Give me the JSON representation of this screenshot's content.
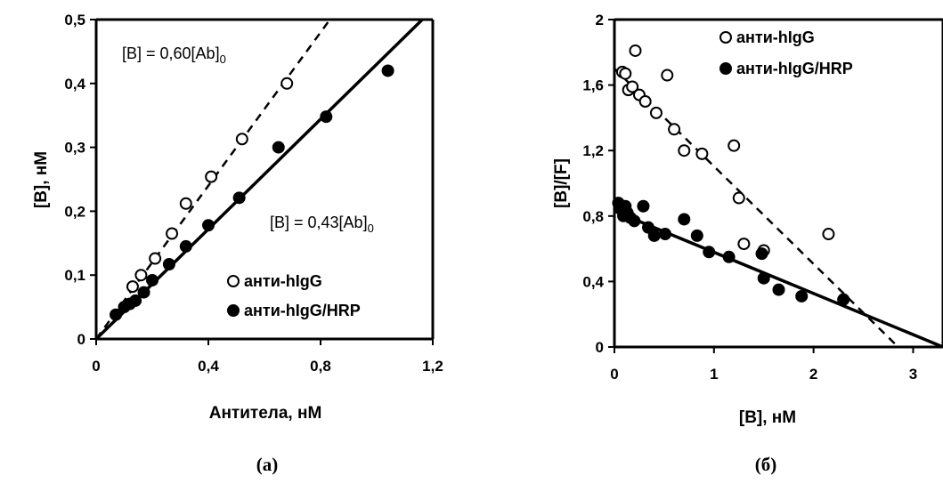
{
  "chart_data": [
    {
      "type": "scatter",
      "panel_label": "(a)",
      "xlabel": "Антитела, нМ",
      "ylabel": "[B], нМ",
      "xlim": [
        0,
        1.2
      ],
      "ylim": [
        0,
        0.5
      ],
      "xticks": [
        "0",
        "0,4",
        "0,8",
        "1,2"
      ],
      "yticks": [
        "0",
        "0,1",
        "0,2",
        "0,3",
        "0,4",
        "0,5"
      ],
      "grid": false,
      "legend_position": "bottom-right",
      "series": [
        {
          "name": "анти-hIgG",
          "marker": "open-circle",
          "x": [
            0.13,
            0.16,
            0.21,
            0.27,
            0.32,
            0.41,
            0.52,
            0.68
          ],
          "y": [
            0.082,
            0.1,
            0.126,
            0.165,
            0.212,
            0.254,
            0.313,
            0.4
          ]
        },
        {
          "name": "анти-hIgG/HRP",
          "marker": "filled-circle",
          "x": [
            0.07,
            0.1,
            0.12,
            0.14,
            0.17,
            0.2,
            0.26,
            0.32,
            0.4,
            0.51,
            0.65,
            0.82,
            1.04
          ],
          "y": [
            0.038,
            0.05,
            0.055,
            0.06,
            0.073,
            0.092,
            0.117,
            0.145,
            0.178,
            0.221,
            0.3,
            0.348,
            0.42
          ]
        }
      ],
      "fits": [
        {
          "label_main": "[B] = 0,60[Ab]",
          "label_sub": "0",
          "slope": 0.6,
          "style": "dashed",
          "x_range": [
            0,
            0.85
          ]
        },
        {
          "label_main": "[B] = 0,43[Ab]",
          "label_sub": "0",
          "slope": 0.43,
          "style": "solid",
          "x_range": [
            0,
            1.2
          ]
        }
      ]
    },
    {
      "type": "scatter",
      "panel_label": "(б)",
      "xlabel": "[B], нМ",
      "ylabel": "[B]/[F]",
      "xlim": [
        0,
        3.3
      ],
      "ylim": [
        0,
        2
      ],
      "xticks": [
        "0",
        "1",
        "2",
        "3"
      ],
      "yticks": [
        "0",
        "0,4",
        "0,8",
        "1,2",
        "1,6",
        "2"
      ],
      "grid": false,
      "legend_position": "top-right",
      "series": [
        {
          "name": "анти-hIgG",
          "marker": "open-circle",
          "x": [
            0.08,
            0.11,
            0.14,
            0.18,
            0.21,
            0.25,
            0.31,
            0.42,
            0.53,
            0.6,
            0.7,
            0.88,
            1.2,
            1.25,
            1.3,
            1.5,
            2.15
          ],
          "y": [
            1.68,
            1.67,
            1.57,
            1.59,
            1.81,
            1.54,
            1.5,
            1.43,
            1.66,
            1.33,
            1.2,
            1.18,
            1.23,
            0.91,
            0.63,
            0.59,
            0.69
          ]
        },
        {
          "name": "анти-hIgG/HRP",
          "marker": "filled-circle",
          "x": [
            0.04,
            0.07,
            0.09,
            0.11,
            0.13,
            0.16,
            0.2,
            0.29,
            0.34,
            0.4,
            0.51,
            0.7,
            0.83,
            0.95,
            1.15,
            1.48,
            1.5,
            1.65,
            1.88,
            2.3
          ],
          "y": [
            0.88,
            0.84,
            0.8,
            0.86,
            0.82,
            0.79,
            0.77,
            0.86,
            0.73,
            0.68,
            0.69,
            0.78,
            0.68,
            0.58,
            0.55,
            0.57,
            0.42,
            0.35,
            0.31,
            0.29
          ]
        }
      ],
      "fits": [
        {
          "style": "dashed",
          "x_range": [
            0,
            2.85
          ],
          "y_range": [
            1.7,
            0
          ]
        },
        {
          "style": "solid",
          "x_range": [
            0,
            3.3
          ],
          "y_range": [
            0.83,
            0
          ]
        }
      ]
    }
  ]
}
